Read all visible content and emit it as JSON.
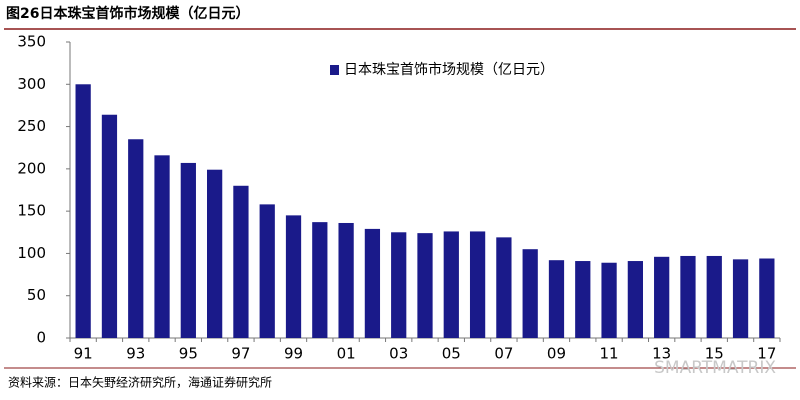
{
  "chart_data": {
    "type": "bar",
    "title": "图26日本珠宝首饰市场规模（亿日元）",
    "categories": [
      "91",
      null,
      "93",
      null,
      "95",
      null,
      "97",
      null,
      "99",
      null,
      "01",
      null,
      "03",
      null,
      "05",
      null,
      "07",
      null,
      "09",
      null,
      "11",
      null,
      "13",
      null,
      "15",
      null,
      "17"
    ],
    "series": [
      {
        "name": "日本珠宝首饰市场规模（亿日元）",
        "color": "#1a1a8a",
        "values": [
          300,
          264,
          235,
          216,
          207,
          199,
          180,
          158,
          145,
          137,
          136,
          129,
          125,
          124,
          126,
          126,
          119,
          105,
          92,
          91,
          89,
          91,
          96,
          97,
          97,
          93,
          94
        ]
      }
    ],
    "ylim": [
      0,
      350
    ],
    "yticks": [
      0,
      50,
      100,
      150,
      200,
      250,
      300,
      350
    ],
    "grid": false,
    "legend": "top",
    "source": "资料来源：日本矢野经济研究所，海通证券研究所",
    "watermark": "SMARTMATRIX"
  }
}
